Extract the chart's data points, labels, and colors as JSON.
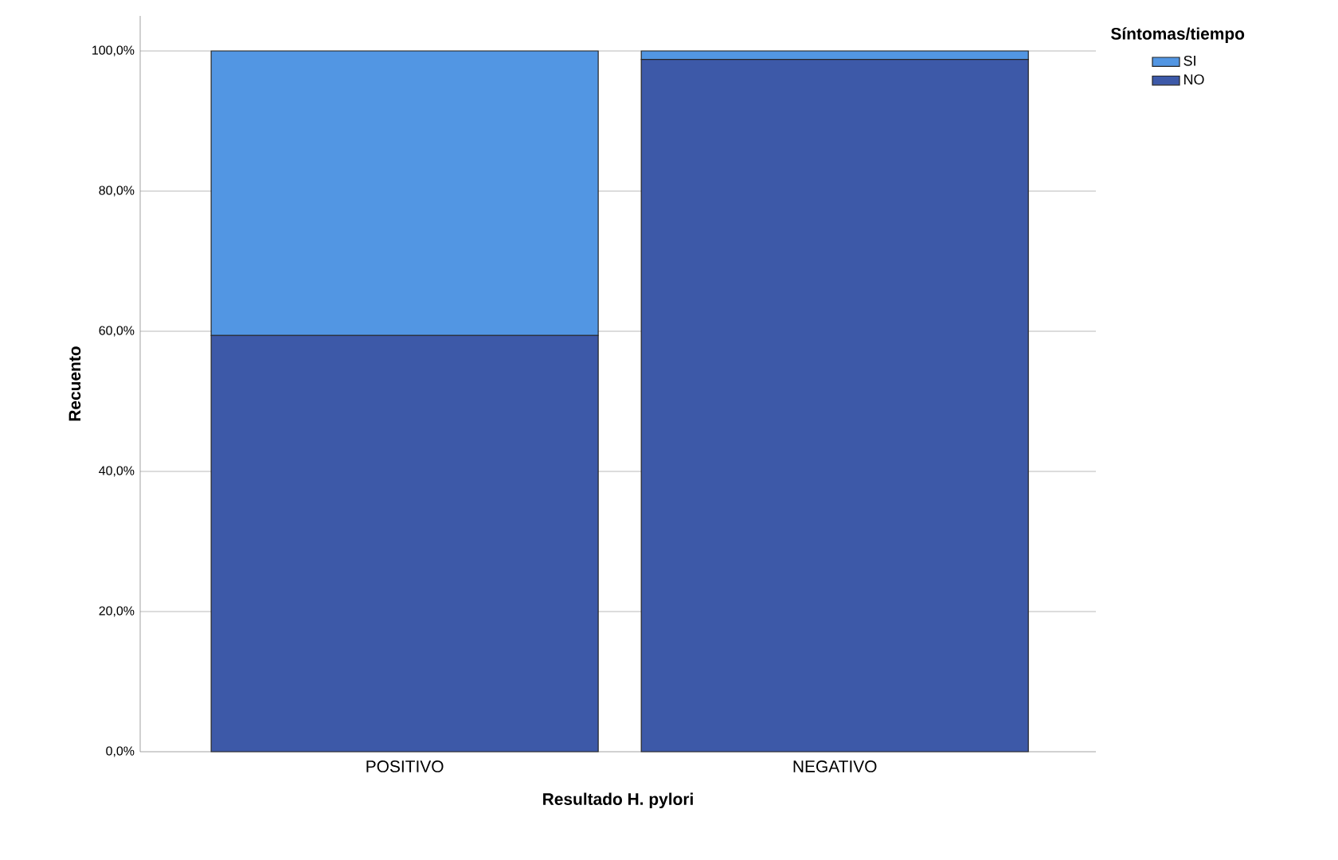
{
  "chart_data": {
    "type": "bar",
    "stacked": true,
    "xlabel": "Resultado H. pylori",
    "ylabel": "Recuento",
    "legend_title": "Síntomas/tiempo",
    "categories": [
      "POSITIVO",
      "NEGATIVO"
    ],
    "series": [
      {
        "name": "NO",
        "color": "#3d59a8",
        "values": [
          59.4,
          98.8
        ]
      },
      {
        "name": "SI",
        "color": "#5296e3",
        "values": [
          40.6,
          1.2
        ]
      }
    ],
    "ylim": [
      0,
      105
    ],
    "yticks": [
      {
        "value": 0,
        "label": "0,0%"
      },
      {
        "value": 20,
        "label": "20,0%"
      },
      {
        "value": 40,
        "label": "40,0%"
      },
      {
        "value": 60,
        "label": "60,0%"
      },
      {
        "value": 80,
        "label": "80,0%"
      },
      {
        "value": 100,
        "label": "100,0%"
      }
    ],
    "grid": "y",
    "legend": "right"
  }
}
